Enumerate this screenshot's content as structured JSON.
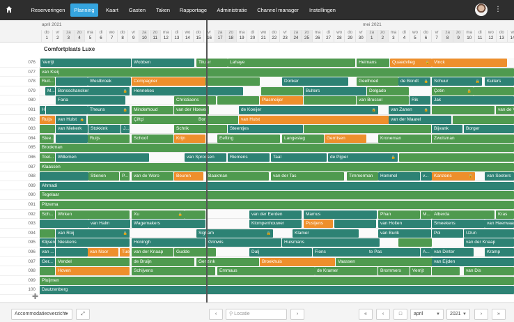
{
  "nav": {
    "items": [
      "Reserveringen",
      "Planning",
      "Kaart",
      "Gasten",
      "Taken",
      "Rapportage",
      "Administratie",
      "Channel manager",
      "Instellingen"
    ],
    "active": "Planning"
  },
  "calendar": {
    "months": [
      "april 2021",
      "mei 2021"
    ],
    "days": [
      [
        "do",
        "1"
      ],
      [
        "vr",
        "2"
      ],
      [
        "za",
        "3"
      ],
      [
        "zo",
        "4"
      ],
      [
        "ma",
        "5"
      ],
      [
        "di",
        "6"
      ],
      [
        "wo",
        "7"
      ],
      [
        "do",
        "8"
      ],
      [
        "vr",
        "9"
      ],
      [
        "za",
        "10"
      ],
      [
        "zo",
        "11"
      ],
      [
        "ma",
        "12"
      ],
      [
        "di",
        "13"
      ],
      [
        "wo",
        "14"
      ],
      [
        "do",
        "15"
      ],
      [
        "vr",
        "16"
      ],
      [
        "za",
        "17"
      ],
      [
        "zo",
        "18"
      ],
      [
        "ma",
        "19"
      ],
      [
        "di",
        "20"
      ],
      [
        "wo",
        "21"
      ],
      [
        "do",
        "22"
      ],
      [
        "vr",
        "23"
      ],
      [
        "za",
        "24"
      ],
      [
        "zo",
        "25"
      ],
      [
        "ma",
        "26"
      ],
      [
        "di",
        "27"
      ],
      [
        "wo",
        "28"
      ],
      [
        "do",
        "29"
      ],
      [
        "vr",
        "30"
      ],
      [
        "za",
        "1"
      ],
      [
        "zo",
        "2"
      ],
      [
        "ma",
        "3"
      ],
      [
        "di",
        "4"
      ],
      [
        "wo",
        "5"
      ],
      [
        "do",
        "6"
      ],
      [
        "vr",
        "7"
      ],
      [
        "za",
        "8"
      ],
      [
        "zo",
        "9"
      ],
      [
        "ma",
        "10"
      ],
      [
        "di",
        "11"
      ],
      [
        "wo",
        "12"
      ],
      [
        "do",
        "13"
      ],
      [
        "vr",
        "14"
      ]
    ]
  },
  "group_title": "Comfortplaats Luxe",
  "rows": [
    {
      "num": "076",
      "bars": [
        [
          "Verrijt",
          "teal",
          58,
          130
        ],
        [
          "Wobben",
          "teal",
          189,
          90
        ],
        [
          "Tituler",
          "green",
          282,
          45
        ],
        [
          "Lahaye",
          "green",
          327,
          183
        ],
        [
          "Heimans",
          "green",
          512,
          47
        ],
        [
          "Quaedvlieg",
          "orange",
          560,
          60,
          true
        ],
        [
          "Vinck",
          "orange",
          620,
          108
        ]
      ]
    },
    {
      "num": "077",
      "bars": [
        [
          "van Kleij",
          "green",
          57,
          681
        ]
      ]
    },
    {
      "num": "078",
      "bars": [
        [
          "Ruit...",
          "green",
          57,
          22
        ],
        [
          "",
          "teal",
          80,
          46
        ],
        [
          "Westbroek",
          "teal",
          126,
          62
        ],
        [
          "Compagner",
          "orange",
          189,
          106
        ],
        [
          "",
          "green",
          295,
          78
        ],
        [
          "Donker",
          "teal",
          405,
          95
        ],
        [
          "Geelhoed",
          "green",
          512,
          60
        ],
        [
          "de Bondt",
          "teal",
          572,
          46,
          true
        ],
        [
          "Schuur",
          "teal",
          620,
          72,
          true
        ],
        [
          "Kuiters",
          "teal",
          696,
          42
        ]
      ]
    },
    {
      "num": "079",
      "bars": [
        [
          "M...",
          "teal",
          65,
          14
        ],
        [
          "Bonsschansker",
          "teal",
          80,
          106,
          true
        ],
        [
          "Hennekes",
          "teal",
          189,
          160
        ],
        [
          "",
          "green",
          375,
          60
        ],
        [
          "Bulters",
          "teal",
          436,
          90
        ],
        [
          "Delgado",
          "green",
          527,
          60
        ],
        [
          "Çetin",
          "green",
          620,
          60,
          true
        ],
        [
          "",
          "green",
          680,
          58
        ]
      ]
    },
    {
      "num": "080",
      "bars": [
        [
          "Faria",
          "teal",
          80,
          100
        ],
        [
          "Christiaens",
          "green",
          250,
          60
        ],
        [
          "",
          "green",
          312,
          60
        ],
        [
          "Plasmeijer",
          "orange",
          373,
          62
        ],
        [
          "",
          "green",
          436,
          75
        ],
        [
          "van Brussel",
          "green",
          512,
          75
        ],
        [
          "Rik",
          "teal",
          588,
          30
        ],
        [
          "Jak",
          "teal",
          620,
          118
        ]
      ]
    },
    {
      "num": "081",
      "bars": [
        [
          "H...",
          "teal",
          57,
          8
        ],
        [
          "",
          "teal",
          66,
          60
        ],
        [
          "Theuns",
          "teal",
          126,
          60,
          true
        ],
        [
          "Minderhoud",
          "green",
          189,
          60
        ],
        [
          "van der Hoever",
          "green",
          250,
          50
        ],
        [
          "de Koeijer",
          "teal",
          343,
          200,
          true
        ],
        [
          "van Zanen",
          "teal",
          558,
          60,
          true
        ],
        [
          "",
          "green",
          620,
          90
        ],
        [
          "van de V...",
          "green",
          712,
          26
        ]
      ]
    },
    {
      "num": "082",
      "bars": [
        [
          "Ruijs",
          "orange",
          57,
          22
        ],
        [
          "van Hulst",
          "teal",
          80,
          44,
          true
        ],
        [
          "",
          "green",
          126,
          60
        ],
        [
          "Çiftçi",
          "green",
          189,
          95
        ],
        [
          "Bor",
          "green",
          282,
          60
        ],
        [
          "van Hulst",
          "orange",
          343,
          215
        ],
        [
          "van der Maarel",
          "teal",
          558,
          90
        ],
        [
          "",
          "green",
          650,
          88
        ]
      ]
    },
    {
      "num": "083",
      "bars": [
        [
          "",
          "green",
          57,
          22
        ],
        [
          "van Niekerk",
          "teal",
          80,
          46
        ],
        [
          "Stokkink",
          "teal",
          127,
          46
        ],
        [
          "J...",
          "teal",
          174,
          12
        ],
        [
          "Schrik",
          "green",
          250,
          76
        ],
        [
          "Steentjes",
          "teal",
          327,
          108
        ],
        [
          "",
          "green",
          436,
          183
        ],
        [
          "Bijvank",
          "teal",
          620,
          44
        ],
        [
          "Borger",
          "teal",
          666,
          72
        ]
      ]
    },
    {
      "num": "084",
      "bars": [
        [
          "Stee...",
          "green",
          57,
          20
        ],
        [
          "",
          "teal",
          80,
          46
        ],
        [
          "Ruijs",
          "green",
          126,
          60
        ],
        [
          "Schoof",
          "green",
          189,
          60
        ],
        [
          "Krijn",
          "orange",
          250,
          45
        ],
        [
          "Eefting",
          "green",
          312,
          90
        ],
        [
          "Langeslag",
          "green",
          405,
          60
        ],
        [
          "Gerritsen",
          "orange",
          466,
          60
        ],
        [
          "Kroneman",
          "green",
          543,
          76
        ],
        [
          "Zwolsman",
          "green",
          620,
          118
        ]
      ]
    },
    {
      "num": "085",
      "bars": [
        [
          "Brookman",
          "green",
          57,
          681
        ]
      ]
    },
    {
      "num": "086",
      "bars": [
        [
          "Toel...",
          "green",
          57,
          22
        ],
        [
          "Willemen",
          "teal",
          80,
          134
        ],
        [
          "van Sprossen",
          "teal",
          265,
          60
        ],
        [
          "Riemens",
          "teal",
          327,
          60
        ],
        [
          "Taal",
          "teal",
          389,
          80
        ],
        [
          "de Pijper",
          "teal",
          471,
          100,
          true
        ],
        [
          "",
          "green",
          573,
          165
        ]
      ]
    },
    {
      "num": "087",
      "bars": [
        [
          "Klaassen",
          "green",
          57,
          681
        ]
      ]
    },
    {
      "num": "088",
      "bars": [
        [
          "",
          "teal",
          57,
          70
        ],
        [
          "Stienen",
          "green",
          127,
          44
        ],
        [
          "P...",
          "green",
          172,
          14
        ],
        [
          "van de Woro",
          "green",
          189,
          60
        ],
        [
          "Beuren",
          "orange",
          250,
          42
        ],
        [
          "Baakman",
          "green",
          296,
          90
        ],
        [
          "van der Tas",
          "green",
          389,
          105
        ],
        [
          "Timmerman",
          "green",
          498,
          45
        ],
        [
          "Hommel",
          "teal",
          543,
          60
        ],
        [
          "v...",
          "teal",
          604,
          16
        ],
        [
          "Karstens",
          "orange",
          620,
          62,
          true
        ],
        [
          "van Seeters",
          "teal",
          696,
          42
        ]
      ]
    },
    {
      "num": "089",
      "bars": [
        [
          "Ahmadi",
          "teal",
          57,
          681
        ]
      ]
    },
    {
      "num": "090",
      "bars": [
        [
          "Tegelaar",
          "green",
          57,
          681
        ]
      ]
    },
    {
      "num": "091",
      "bars": [
        [
          "Pitzema",
          "green",
          57,
          681
        ]
      ]
    },
    {
      "num": "092",
      "bars": [
        [
          "Sch...",
          "green",
          57,
          22
        ],
        [
          "Wirken",
          "green",
          80,
          106
        ],
        [
          "Xu",
          "green",
          189,
          76,
          true
        ],
        [
          "",
          "green",
          265,
          30
        ],
        [
          "van der Eerden",
          "teal",
          358,
          75
        ],
        [
          "Mamus",
          "teal",
          436,
          105
        ],
        [
          "Phan",
          "green",
          543,
          60
        ],
        [
          "M...",
          "green",
          604,
          16
        ],
        [
          "Alberda",
          "green",
          620,
          90
        ],
        [
          "Kras",
          "green",
          712,
          26
        ]
      ]
    },
    {
      "num": "093",
      "bars": [
        [
          "",
          "teal",
          57,
          70
        ],
        [
          "van Halm",
          "teal",
          127,
          60
        ],
        [
          "Wagemakers",
          "teal",
          189,
          106
        ],
        [
          "Klompenhouwer",
          "teal",
          358,
          75
        ],
        [
          "Pustjens",
          "orange",
          436,
          42
        ],
        [
          "",
          "teal",
          480,
          60
        ],
        [
          "van Holten",
          "teal",
          543,
          76
        ],
        [
          "Smeekens",
          "teal",
          620,
          76
        ],
        [
          "van Heerwaarden",
          "teal",
          696,
          42
        ]
      ]
    },
    {
      "num": "094",
      "bars": [
        [
          "",
          "green",
          57,
          22
        ],
        [
          "van Roij",
          "teal",
          80,
          106,
          true
        ],
        [
          "Sigham",
          "teal",
          282,
          110,
          true
        ],
        [
          "Klamer",
          "teal",
          420,
          95
        ],
        [
          "van Burik",
          "teal",
          543,
          76
        ],
        [
          "Pol",
          "teal",
          620,
          45
        ],
        [
          "Uzun",
          "teal",
          666,
          72
        ]
      ]
    },
    {
      "num": "095",
      "bars": [
        [
          "Klijsen",
          "teal",
          57,
          22
        ],
        [
          "Nieskens",
          "teal",
          80,
          106
        ],
        [
          "Honingh",
          "teal",
          189,
          106
        ],
        [
          "Grinwis",
          "teal",
          296,
          108
        ],
        [
          "Huismans",
          "teal",
          405,
          140
        ],
        [
          "",
          "green",
          572,
          48
        ],
        [
          "van der Knaap",
          "teal",
          666,
          72
        ]
      ]
    },
    {
      "num": "096",
      "bars": [
        [
          "van ...",
          "teal",
          57,
          22
        ],
        [
          "",
          "teal",
          80,
          46
        ],
        [
          "van Noor",
          "orange",
          126,
          44
        ],
        [
          "Tuerlings",
          "orange",
          172,
          14
        ],
        [
          "van der Knaap",
          "green",
          189,
          60
        ],
        [
          "Gudde",
          "green",
          250,
          60
        ],
        [
          "Dalj",
          "teal",
          358,
          90
        ],
        [
          "Fions",
          "teal",
          449,
          80
        ],
        [
          "te Pas",
          "teal",
          527,
          76
        ],
        [
          "A...",
          "teal",
          604,
          16
        ],
        [
          "van Dinter",
          "teal",
          620,
          60
        ],
        [
          "Kramp",
          "teal",
          696,
          42
        ]
      ]
    },
    {
      "num": "097",
      "bars": [
        [
          "Ger...",
          "teal",
          57,
          22
        ],
        [
          "Vendel",
          "green",
          80,
          106
        ],
        [
          "de Bruijn",
          "green",
          189,
          90
        ],
        [
          "Genzink",
          "green",
          282,
          90
        ],
        [
          "Broekhuis",
          "orange",
          373,
          108
        ],
        [
          "Vaassen",
          "green",
          482,
          140
        ],
        [
          "van Eijden",
          "teal",
          620,
          118
        ]
      ]
    },
    {
      "num": "098",
      "bars": [
        [
          "",
          "green",
          57,
          22
        ],
        [
          "Hoven",
          "orange",
          80,
          106
        ],
        [
          "Schijvens",
          "green",
          189,
          120
        ],
        [
          "Emmaus",
          "green",
          312,
          140
        ],
        [
          "de Kramer",
          "green",
          452,
          90
        ],
        [
          "Brommers",
          "green",
          543,
          45
        ],
        [
          "Verrijt",
          "green",
          589,
          30
        ],
        [
          "",
          "green",
          620,
          40
        ],
        [
          "van Dis",
          "green",
          666,
          72
        ]
      ]
    },
    {
      "num": "099",
      "bars": [
        [
          "Pluijmen",
          "green",
          57,
          681
        ]
      ]
    },
    {
      "num": "100",
      "bars": [
        [
          "Dautzenberg",
          "teal",
          57,
          681
        ]
      ]
    }
  ],
  "footer": {
    "view_select": "Accommodatieoverzicht",
    "location_placeholder": "Locatie",
    "month_select": "april",
    "year_select": "2021"
  },
  "colors": {
    "green": "#4f9a4f",
    "teal": "#2d8274",
    "orange": "#ee8f2c",
    "accent": "#35a4de"
  }
}
